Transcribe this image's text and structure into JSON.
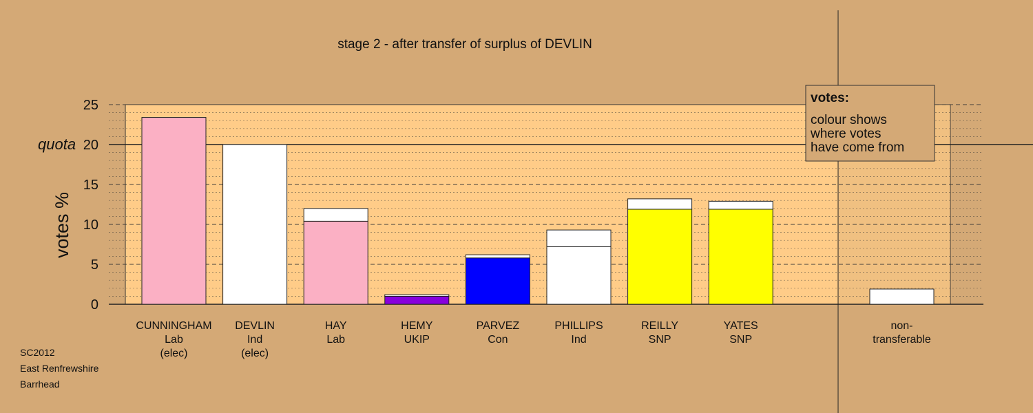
{
  "chart_data": {
    "type": "bar",
    "title": "stage 2 - after transfer of surplus of DEVLIN",
    "ylabel": "votes %",
    "ylim": [
      0,
      25
    ],
    "yticks": [
      0,
      5,
      10,
      15,
      20,
      25
    ],
    "quota": {
      "label": "quota",
      "value": 20
    },
    "grid": true,
    "candidates": [
      {
        "name": "CUNNINGHAM",
        "party": "Lab",
        "status": "(elec)",
        "segments": [
          {
            "value": 23.4,
            "color": "#fbb0c4"
          }
        ]
      },
      {
        "name": "DEVLIN",
        "party": "Ind",
        "status": "(elec)",
        "segments": [
          {
            "value": 20.0,
            "color": "#ffffff"
          }
        ]
      },
      {
        "name": "HAY",
        "party": "Lab",
        "status": "",
        "segments": [
          {
            "value": 10.4,
            "color": "#fbb0c4"
          },
          {
            "value": 1.6,
            "color": "#ffffff"
          }
        ]
      },
      {
        "name": "HEMY",
        "party": "UKIP",
        "status": "",
        "segments": [
          {
            "value": 1.0,
            "color": "#8800dd"
          },
          {
            "value": 0.2,
            "color": "#ffffff"
          }
        ]
      },
      {
        "name": "PARVEZ",
        "party": "Con",
        "status": "",
        "segments": [
          {
            "value": 5.8,
            "color": "#0000ff"
          },
          {
            "value": 0.4,
            "color": "#ffffff"
          }
        ]
      },
      {
        "name": "PHILLIPS",
        "party": "Ind",
        "status": "",
        "segments": [
          {
            "value": 7.2,
            "color": "#ffffff"
          },
          {
            "value": 2.1,
            "color": "#ffffff"
          }
        ]
      },
      {
        "name": "REILLY",
        "party": "SNP",
        "status": "",
        "segments": [
          {
            "value": 11.9,
            "color": "#ffff00"
          },
          {
            "value": 1.3,
            "color": "#ffffff"
          }
        ]
      },
      {
        "name": "YATES",
        "party": "SNP",
        "status": "",
        "segments": [
          {
            "value": 11.9,
            "color": "#ffff00"
          },
          {
            "value": 1.0,
            "color": "#ffffff"
          }
        ]
      }
    ],
    "nontransferable": {
      "label_line1": "non-",
      "label_line2": "transferable",
      "value": 1.9,
      "color": "#ffffff"
    },
    "legend": {
      "title": "votes:",
      "lines": [
        "colour shows",
        "where votes",
        "have come from"
      ],
      "placement": "top-right"
    }
  },
  "footer": {
    "line1": "SC2012",
    "line2": "East Renfrewshire",
    "line3": "Barrhead"
  },
  "colors": {
    "background": "#d4a976",
    "plot_area": "#ffcc88",
    "grid": "#333333"
  }
}
